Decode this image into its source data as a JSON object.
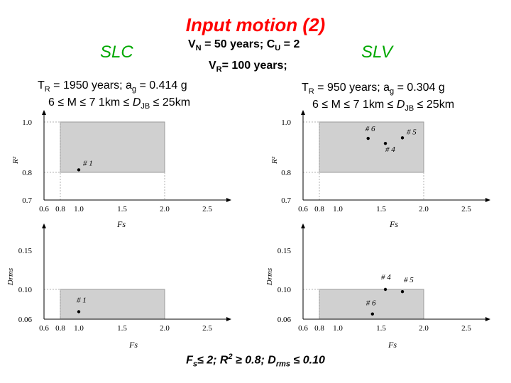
{
  "title": "Input motion (2)",
  "left_label": "SLC",
  "right_label": "SLV",
  "vn": {
    "v": "V",
    "v_sub": "N",
    "mid": " = 50 years;  C",
    "c_sub": "U",
    "end": " = 2"
  },
  "vr": {
    "v": "V",
    "v_sub": "R",
    "end": "= 100 years;"
  },
  "left_cond": {
    "t": "T",
    "t_sub": "R",
    "a": " = 1950 years;  a",
    "a_sub": "g",
    "end": " = 0.414 g",
    "line2_a": "6 ≤ M ≤ 7  1km ≤ ",
    "d": "D",
    "d_sub": "JB",
    "line2_end": " ≤ 25km"
  },
  "right_cond": {
    "t": "T",
    "t_sub": "R",
    "a": " = 950 years;  a",
    "a_sub": "g",
    "end": " = 0.304 g",
    "line2_a": "6 ≤ M ≤ 7  1km ≤ ",
    "d": "D",
    "d_sub": "JB",
    "line2_end": " ≤ 25km"
  },
  "footer": {
    "f": "F",
    "f_sub": "s",
    "a": "≤ 2;  R",
    "sup": "2",
    "b": " ≥ 0.8;  D",
    "d_sub": "rms",
    "c": " ≤ 0.10"
  },
  "chart_data": [
    {
      "id": "slc-r2",
      "type": "scatter",
      "xlabel": "Fs",
      "ylabel": "R²",
      "xticks": [
        "0.6",
        "0.8",
        "1.0",
        "1.5",
        "2.0",
        "2.5"
      ],
      "yticks": [
        "0.7",
        "0.8",
        "1.0"
      ],
      "xlim": [
        0.6,
        2.7
      ],
      "ylim": [
        0.7,
        1.05
      ],
      "region": {
        "x": [
          0.8,
          2.0
        ],
        "y": [
          0.8,
          1.0
        ]
      },
      "points": [
        {
          "label": "# 1",
          "x": 1.0,
          "y": 0.81
        }
      ]
    },
    {
      "id": "slv-r2",
      "type": "scatter",
      "xlabel": "Fs",
      "ylabel": "R²",
      "xticks": [
        "0.6",
        "0.8",
        "1.0",
        "1.5",
        "2.0",
        "2.5"
      ],
      "yticks": [
        "0.7",
        "0.8",
        "1.0"
      ],
      "xlim": [
        0.6,
        2.7
      ],
      "ylim": [
        0.7,
        1.05
      ],
      "region": {
        "x": [
          0.8,
          2.0
        ],
        "y": [
          0.8,
          1.0
        ]
      },
      "points": [
        {
          "label": "# 6",
          "x": 1.35,
          "y": 0.935
        },
        {
          "label": "# 5",
          "x": 1.75,
          "y": 0.937
        },
        {
          "label": "# 4",
          "x": 1.55,
          "y": 0.915
        }
      ]
    },
    {
      "id": "slc-drms",
      "type": "scatter",
      "xlabel": "Fs",
      "ylabel": "Drms",
      "xticks": [
        "0.6",
        "0.8",
        "1.0",
        "1.5",
        "2.0",
        "2.5"
      ],
      "yticks": [
        "0.06",
        "0.10",
        "0.15"
      ],
      "xlim": [
        0.6,
        2.7
      ],
      "ylim": [
        0.06,
        0.18
      ],
      "region": {
        "x": [
          0.8,
          2.0
        ],
        "y": [
          0.06,
          0.1
        ]
      },
      "points": [
        {
          "label": "# 1",
          "x": 1.0,
          "y": 0.07
        }
      ]
    },
    {
      "id": "slv-drms",
      "type": "scatter",
      "xlabel": "Fs",
      "ylabel": "Drms",
      "xticks": [
        "0.6",
        "0.8",
        "1.0",
        "1.5",
        "2.0",
        "2.5"
      ],
      "yticks": [
        "0.06",
        "0.10",
        "0.15"
      ],
      "xlim": [
        0.6,
        2.7
      ],
      "ylim": [
        0.06,
        0.18
      ],
      "region": {
        "x": [
          0.8,
          2.0
        ],
        "y": [
          0.06,
          0.1
        ]
      },
      "points": [
        {
          "label": "# 6",
          "x": 1.4,
          "y": 0.067
        },
        {
          "label": "# 4",
          "x": 1.55,
          "y": 0.1
        },
        {
          "label": "# 5",
          "x": 1.75,
          "y": 0.097
        }
      ]
    }
  ]
}
